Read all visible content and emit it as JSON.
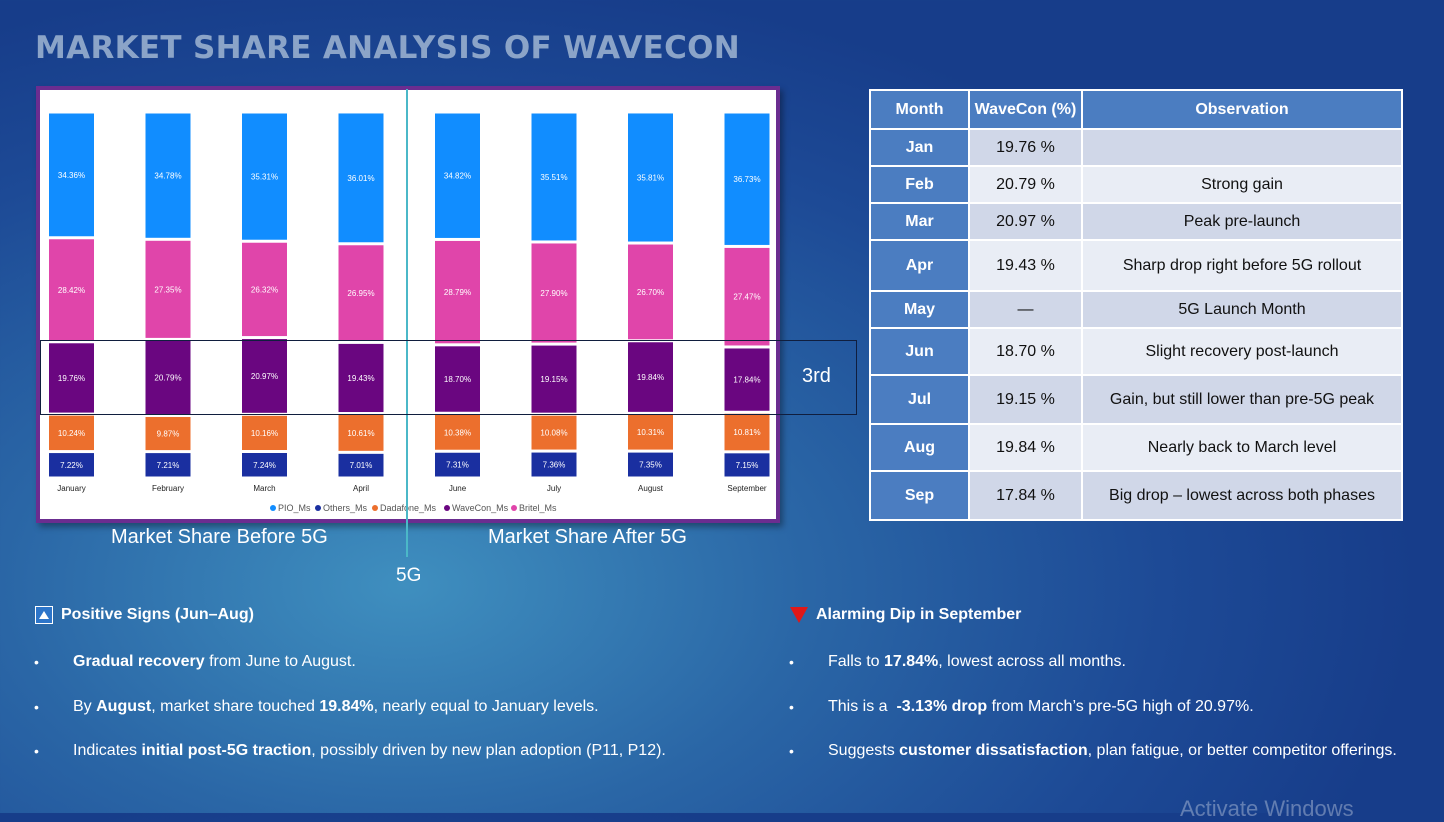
{
  "title": "MARKET SHARE ANALYSIS OF WAVECON",
  "chart_data": {
    "type": "bar",
    "stacked": true,
    "categories": [
      "January",
      "February",
      "March",
      "April",
      "June",
      "July",
      "August",
      "September"
    ],
    "series": [
      {
        "name": "Others_Ms",
        "color": "#1a2fa0",
        "values": [
          7.22,
          7.21,
          7.24,
          7.01,
          7.31,
          7.36,
          7.35,
          7.15
        ]
      },
      {
        "name": "Dadafone_Ms",
        "color": "#ec6f2d",
        "values": [
          10.24,
          9.87,
          10.16,
          10.61,
          10.38,
          10.08,
          10.31,
          10.81
        ]
      },
      {
        "name": "WaveCon_Ms",
        "color": "#6a0680",
        "values": [
          19.76,
          20.79,
          20.97,
          19.43,
          18.7,
          19.15,
          19.84,
          17.84
        ]
      },
      {
        "name": "Britel_Ms",
        "color": "#e045aa",
        "values": [
          28.42,
          27.35,
          26.32,
          26.95,
          28.79,
          27.9,
          26.7,
          27.47
        ]
      },
      {
        "name": "PIO_Ms",
        "color": "#118dff",
        "values": [
          34.36,
          34.78,
          35.31,
          36.01,
          34.82,
          35.51,
          35.81,
          36.73
        ]
      }
    ],
    "legend": [
      "PIO_Ms",
      "Others_Ms",
      "Dadafone_Ms",
      "WaveCon_Ms",
      "Britel_Ms"
    ],
    "legend_position": "bottom",
    "grid": false
  },
  "annotations": {
    "before": "Market Share Before 5G",
    "after": "Market Share After 5G",
    "divider": "5G",
    "rank": "3rd"
  },
  "table": {
    "headers": [
      "Month",
      "WaveCon (%)",
      "Observation"
    ],
    "rows": [
      {
        "month": "Jan",
        "value": "19.76 %",
        "obs": ""
      },
      {
        "month": "Feb",
        "value": "20.79 %",
        "obs": "Strong gain"
      },
      {
        "month": "Mar",
        "value": "20.97 %",
        "obs": "Peak pre-launch"
      },
      {
        "month": "Apr",
        "value": "19.43 %",
        "obs": "Sharp drop right before 5G rollout"
      },
      {
        "month": "May",
        "value": "—",
        "obs": "5G Launch Month"
      },
      {
        "month": "Jun",
        "value": "18.70 %",
        "obs": "Slight recovery post-launch"
      },
      {
        "month": "Jul",
        "value": "19.15 %",
        "obs": "Gain, but still lower than pre-5G peak"
      },
      {
        "month": "Aug",
        "value": "19.84 %",
        "obs": "Nearly back to March level"
      },
      {
        "month": "Sep",
        "value": "17.84 %",
        "obs": "Big drop – lowest across both phases"
      }
    ]
  },
  "positive": {
    "icon": "up-triangle-icon",
    "title": "Positive Signs (Jun–Aug)",
    "b1": {
      "s1": "Gradual recovery",
      "s2": " from June to August."
    },
    "b2": {
      "s1": "By ",
      "s2": "August",
      "s3": ", market share touched ",
      "s4": "19.84%",
      "s5": ", nearly equal to January levels."
    },
    "b3": {
      "s1": "Indicates ",
      "s2": "initial post-5G traction",
      "s3": ", possibly driven by new plan adoption (P11, P12)."
    }
  },
  "alarm": {
    "icon": "down-triangle-icon",
    "title": "Alarming Dip in September",
    "b1": {
      "s1": "Falls to ",
      "s2": "17.84%",
      "s3": ", lowest across all months."
    },
    "b2": {
      "s1": "This is a  ",
      "s2": "-3.13% drop",
      "s3": " from March’s pre-5G high of 20.97%."
    },
    "b3": {
      "s1": "Suggests ",
      "s2": "customer dissatisfaction",
      "s3": ", plan fatigue, or better competitor offerings."
    }
  },
  "watermark": "Activate Windows"
}
